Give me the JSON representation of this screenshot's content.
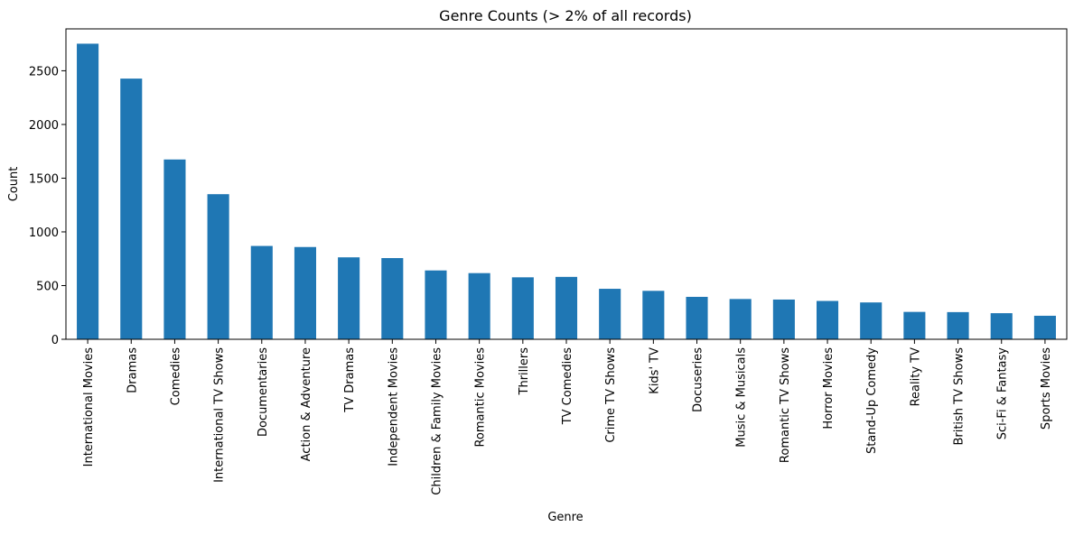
{
  "chart_data": {
    "type": "bar",
    "title": "Genre Counts (> 2% of all records)",
    "xlabel": "Genre",
    "ylabel": "Count",
    "categories": [
      "International Movies",
      "Dramas",
      "Comedies",
      "International TV Shows",
      "Documentaries",
      "Action & Adventure",
      "TV Dramas",
      "Independent Movies",
      "Children & Family Movies",
      "Romantic Movies",
      "Thrillers",
      "TV Comedies",
      "Crime TV Shows",
      "Kids' TV",
      "Docuseries",
      "Music & Musicals",
      "Romantic TV Shows",
      "Horror Movies",
      "Stand-Up Comedy",
      "Reality TV",
      "British TV Shows",
      "Sci-Fi & Fantasy",
      "Sports Movies"
    ],
    "values": [
      2752,
      2427,
      1674,
      1351,
      869,
      859,
      763,
      756,
      641,
      616,
      577,
      581,
      470,
      451,
      395,
      375,
      370,
      357,
      343,
      255,
      253,
      243,
      219
    ],
    "yticks": [
      0,
      500,
      1000,
      1500,
      2000,
      2500
    ],
    "ylim": [
      0,
      2890
    ],
    "bar_color": "#1f77b4",
    "grid": false,
    "legend": "none"
  }
}
